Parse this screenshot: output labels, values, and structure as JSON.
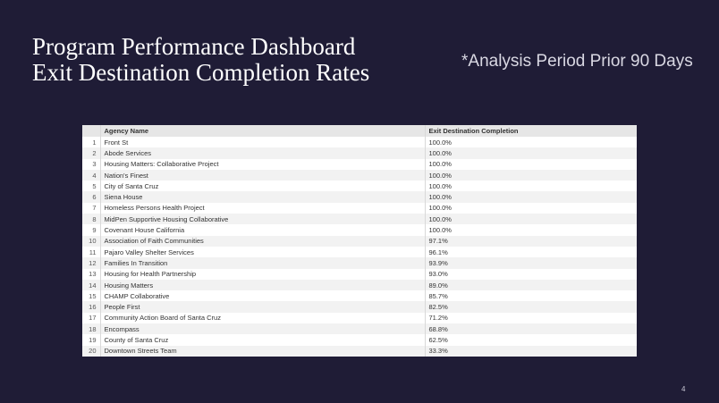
{
  "slide": {
    "title_line1": "Program Performance Dashboard",
    "title_line2": "Exit Destination Completion Rates",
    "period_note": "*Analysis Period Prior 90 Days",
    "page_number": "4"
  },
  "table": {
    "columns": [
      "",
      "Agency Name",
      "Exit Destination Completion"
    ],
    "rows": [
      {
        "index": "1",
        "agency": "Front St",
        "completion": "100.0%"
      },
      {
        "index": "2",
        "agency": "Abode Services",
        "completion": "100.0%"
      },
      {
        "index": "3",
        "agency": "Housing Matters: Collaborative Project",
        "completion": "100.0%"
      },
      {
        "index": "4",
        "agency": "Nation's Finest",
        "completion": "100.0%"
      },
      {
        "index": "5",
        "agency": "City of Santa Cruz",
        "completion": "100.0%"
      },
      {
        "index": "6",
        "agency": "Siena House",
        "completion": "100.0%"
      },
      {
        "index": "7",
        "agency": "Homeless Persons Health Project",
        "completion": "100.0%"
      },
      {
        "index": "8",
        "agency": "MidPen Supportive Housing Collaborative",
        "completion": "100.0%"
      },
      {
        "index": "9",
        "agency": "Covenant House California",
        "completion": "100.0%"
      },
      {
        "index": "10",
        "agency": "Association of Faith Communities",
        "completion": "97.1%"
      },
      {
        "index": "11",
        "agency": "Pajaro Valley Shelter Services",
        "completion": "96.1%"
      },
      {
        "index": "12",
        "agency": "Families In Transition",
        "completion": "93.9%"
      },
      {
        "index": "13",
        "agency": "Housing for Health Partnership",
        "completion": "93.0%"
      },
      {
        "index": "14",
        "agency": "Housing Matters",
        "completion": "89.0%"
      },
      {
        "index": "15",
        "agency": "CHAMP Collaborative",
        "completion": "85.7%"
      },
      {
        "index": "16",
        "agency": "People First",
        "completion": "82.5%"
      },
      {
        "index": "17",
        "agency": "Community Action Board of Santa Cruz",
        "completion": "71.2%"
      },
      {
        "index": "18",
        "agency": "Encompass",
        "completion": "68.8%"
      },
      {
        "index": "19",
        "agency": "County of Santa Cruz",
        "completion": "62.5%"
      },
      {
        "index": "20",
        "agency": "Downtown Streets Team",
        "completion": "33.3%"
      }
    ]
  }
}
